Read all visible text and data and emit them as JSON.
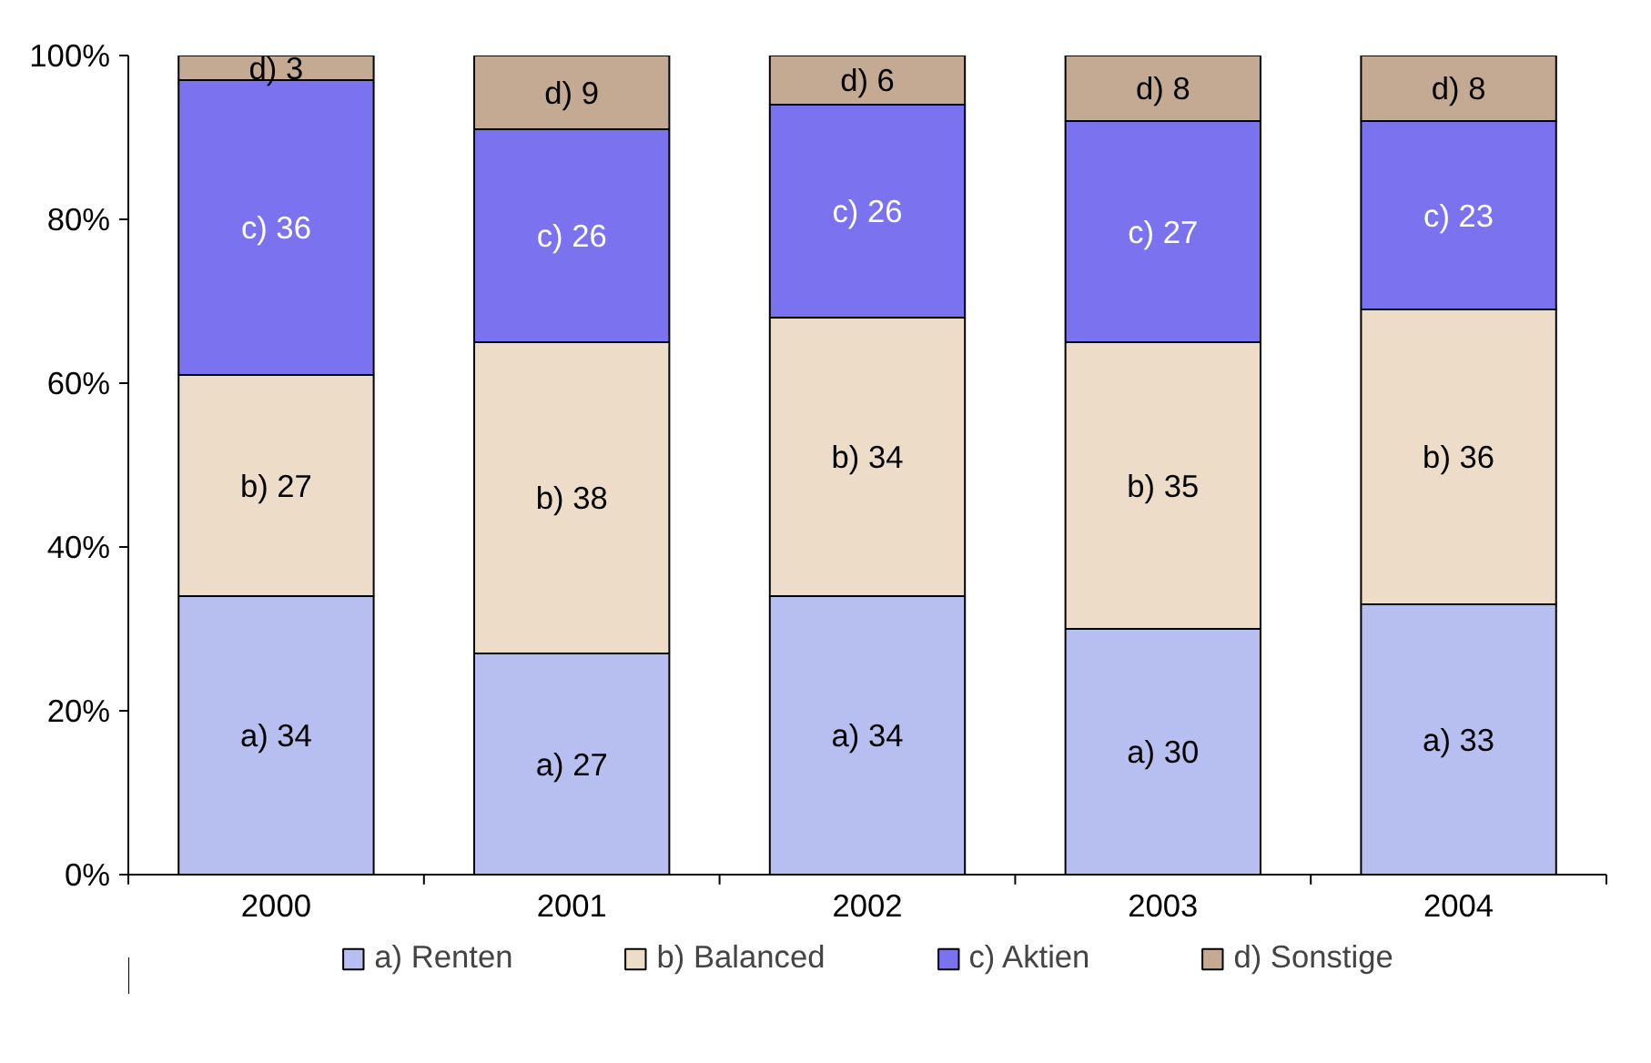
{
  "chart_data": {
    "type": "bar",
    "stacked": true,
    "categories": [
      "2000",
      "2001",
      "2002",
      "2003",
      "2004"
    ],
    "series": [
      {
        "name": "a) Renten",
        "color": "#b7bff0",
        "values": [
          34,
          27,
          34,
          30,
          33
        ],
        "value_labels": [
          "a) 34",
          "a) 27",
          "a) 34",
          "a) 30",
          "a) 33"
        ]
      },
      {
        "name": "b) Balanced",
        "color": "#ecdcc8",
        "values": [
          27,
          38,
          34,
          35,
          36
        ],
        "value_labels": [
          "b) 27",
          "b) 38",
          "b) 34",
          "b) 35",
          "b) 36"
        ]
      },
      {
        "name": "c) Aktien",
        "color": "#7b72f0",
        "values": [
          36,
          26,
          26,
          27,
          23
        ],
        "value_labels": [
          "c) 36",
          "c) 26",
          "c) 26",
          "c) 27",
          "c) 23"
        ]
      },
      {
        "name": "d) Sonstige",
        "color": "#c4aa92",
        "values": [
          3,
          9,
          6,
          8,
          8
        ],
        "value_labels": [
          "d) 3",
          "d) 9",
          "d) 6",
          "d) 8",
          "d) 8"
        ]
      }
    ],
    "ylim": [
      0,
      100
    ],
    "yticks": [
      {
        "value": 0,
        "label": "0%"
      },
      {
        "value": 20,
        "label": "20%"
      },
      {
        "value": 40,
        "label": "40%"
      },
      {
        "value": 60,
        "label": "60%"
      },
      {
        "value": 80,
        "label": "80%"
      },
      {
        "value": 100,
        "label": "100%"
      }
    ],
    "grid": false,
    "legend": "bottom"
  }
}
